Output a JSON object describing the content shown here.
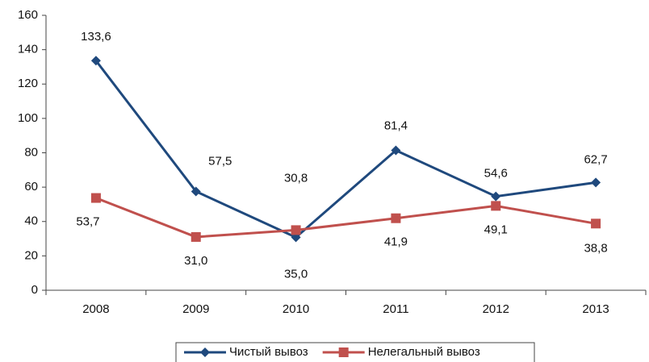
{
  "chart_data": {
    "type": "line",
    "categories": [
      "2008",
      "2009",
      "2010",
      "2011",
      "2012",
      "2013"
    ],
    "series": [
      {
        "name": "Чистый вывоз",
        "color": "#1f497d",
        "marker": "diamond",
        "values": [
          133.6,
          57.5,
          30.8,
          81.4,
          54.6,
          62.7
        ],
        "value_labels": [
          "133,6",
          "57,5",
          "30,8",
          "81,4",
          "54,6",
          "62,7"
        ]
      },
      {
        "name": "Нелегальный вывоз",
        "color": "#c0504d",
        "marker": "square",
        "values": [
          53.7,
          31.0,
          35.0,
          41.9,
          49.1,
          38.8
        ],
        "value_labels": [
          "53,7",
          "31,0",
          "35,0",
          "41,9",
          "49,1",
          "38,8"
        ]
      }
    ],
    "ylim": [
      0,
      160
    ],
    "yticks": [
      0,
      20,
      40,
      60,
      80,
      100,
      120,
      140,
      160
    ],
    "grid": false,
    "legend": "bottom"
  }
}
